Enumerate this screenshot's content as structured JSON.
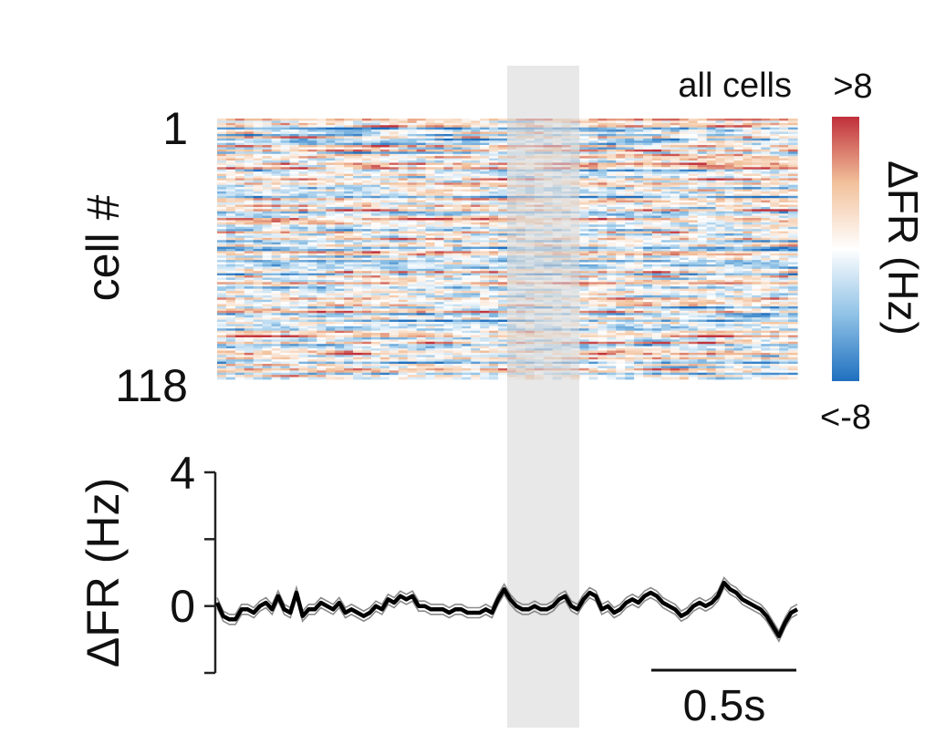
{
  "chart_data": [
    {
      "type": "heatmap",
      "title": "all cells",
      "ylabel": "cell #",
      "ytick_labels": [
        "1",
        "118"
      ],
      "n_rows": 118,
      "colorbar": {
        "label": "ΔFR (Hz)",
        "max_label": ">8",
        "min_label": "<-8",
        "range": [
          -8,
          8
        ],
        "colors": [
          "#1f6fbf",
          "#8fc2e6",
          "#ffffff",
          "#f2c19b",
          "#c0303a"
        ]
      },
      "stimulus_window_color": "#d9d9d9"
    },
    {
      "type": "line",
      "ylabel": "ΔFR (Hz)",
      "ylim": [
        -2,
        4
      ],
      "yticks": [
        -2,
        0,
        2,
        4
      ],
      "ytick_labels": [
        "4",
        "0"
      ],
      "scale_bar_label": "0.5s",
      "series": [
        {
          "values": [
            0.1,
            -0.3,
            -0.4,
            -0.4,
            -0.1,
            -0.1,
            -0.2,
            0.0,
            0.1,
            -0.1,
            0.3,
            -0.1,
            -0.2,
            0.4,
            -0.3,
            -0.1,
            -0.1,
            0.1,
            0.0,
            -0.1,
            0.1,
            -0.2,
            -0.1,
            -0.2,
            -0.3,
            -0.2,
            0.0,
            -0.1,
            0.2,
            0.1,
            0.3,
            0.2,
            0.3,
            0.0,
            0.0,
            -0.1,
            -0.1,
            -0.1,
            -0.2,
            -0.1,
            -0.1,
            -0.2,
            -0.2,
            -0.2,
            -0.1,
            -0.2,
            0.2,
            0.5,
            0.2,
            0.0,
            -0.1,
            -0.1,
            0.0,
            -0.1,
            -0.1,
            0.0,
            0.2,
            0.3,
            0.0,
            -0.1,
            0.2,
            0.4,
            0.3,
            -0.1,
            0.0,
            -0.2,
            -0.1,
            0.1,
            0.2,
            0.1,
            0.3,
            0.4,
            0.3,
            0.1,
            0.0,
            -0.1,
            -0.3,
            -0.2,
            0.0,
            0.1,
            0.0,
            0.1,
            0.3,
            0.7,
            0.5,
            0.4,
            0.2,
            0.1,
            0.0,
            -0.1,
            -0.3,
            -0.6,
            -0.9,
            -0.5,
            -0.2,
            -0.1
          ],
          "sem": 0.15
        }
      ]
    }
  ]
}
